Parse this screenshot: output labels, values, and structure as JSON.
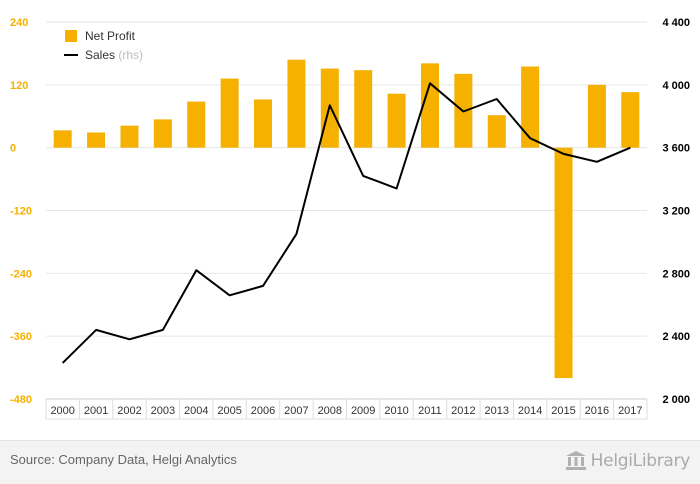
{
  "chart_data": {
    "type": "bar+line",
    "categories": [
      "2000",
      "2001",
      "2002",
      "2003",
      "2004",
      "2005",
      "2006",
      "2007",
      "2008",
      "2009",
      "2010",
      "2011",
      "2012",
      "2013",
      "2014",
      "2015",
      "2016",
      "2017"
    ],
    "series": [
      {
        "name": "Net Profit",
        "type": "bar",
        "axis": "left",
        "color": "#f5b000",
        "values": [
          33,
          29,
          42,
          54,
          88,
          132,
          92,
          168,
          151,
          148,
          103,
          161,
          141,
          62,
          155,
          -440,
          120,
          106
        ]
      },
      {
        "name": "Sales",
        "legend_suffix": "(rhs)",
        "type": "line",
        "axis": "right",
        "color": "#000000",
        "values": [
          2230,
          2440,
          2380,
          2440,
          2820,
          2660,
          2720,
          3050,
          3870,
          3420,
          3340,
          4010,
          3830,
          3910,
          3660,
          3560,
          3510,
          3600
        ]
      }
    ],
    "left_axis": {
      "min": -480,
      "max": 240,
      "ticks": [
        240,
        120,
        0,
        -120,
        -240,
        -360,
        -480
      ],
      "tick_labels": [
        "240",
        "120",
        "0",
        "-120",
        "-240",
        "-360",
        "-480"
      ],
      "color": "#f5b000"
    },
    "right_axis": {
      "min": 2000,
      "max": 4400,
      "ticks": [
        4400,
        4000,
        3600,
        3200,
        2800,
        2400,
        2000
      ],
      "tick_labels": [
        "4 400",
        "4 000",
        "3 600",
        "3 200",
        "2 800",
        "2 400",
        "2 000"
      ],
      "color": "#000000"
    },
    "grid": "horizontal",
    "legend_position": "top-left"
  },
  "footer": {
    "source": "Source: Company Data, Helgi Analytics",
    "brand": "HelgiLibrary"
  }
}
